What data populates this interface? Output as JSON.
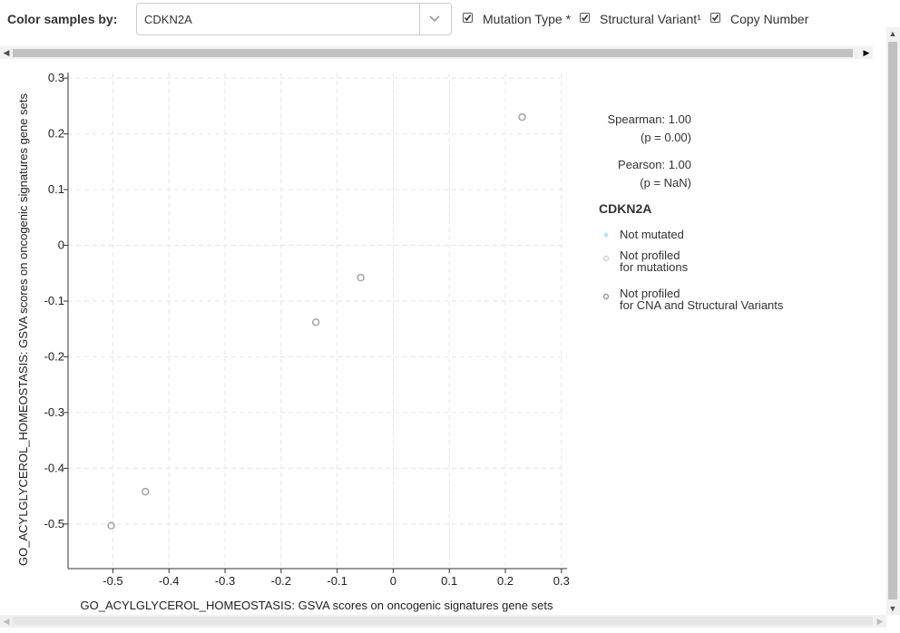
{
  "toolbar": {
    "color_label": "Color samples by:",
    "gene_select_value": "CDKN2A",
    "checkboxes": [
      {
        "label": "Mutation Type *",
        "checked": true
      },
      {
        "label": "Structural Variant¹",
        "checked": true
      },
      {
        "label": "Copy Number",
        "checked": true
      }
    ]
  },
  "chart_data": {
    "type": "scatter",
    "xlabel": "GO_ACYLGLYCEROL_HOMEOSTASIS: GSVA scores on oncogenic signatures gene sets",
    "ylabel": "GO_ACYLGLYCEROL_HOMEOSTASIS: GSVA scores on oncogenic signatures gene sets",
    "xlim": [
      -0.58,
      0.31
    ],
    "ylim": [
      -0.58,
      0.31
    ],
    "x_ticks": [
      -0.5,
      -0.4,
      -0.3,
      -0.2,
      -0.1,
      0,
      0.1,
      0.2,
      0.3
    ],
    "y_ticks": [
      -0.5,
      -0.4,
      -0.3,
      -0.2,
      -0.1,
      0,
      0.1,
      0.2,
      0.3
    ],
    "x_tick_labels": [
      "-0.5",
      "-0.4",
      "-0.3",
      "-0.2",
      "-0.1",
      "0",
      "0.1",
      "0.2",
      "0.3"
    ],
    "y_tick_labels": [
      "-0.5",
      "-0.4",
      "-0.3",
      "-0.2",
      "-0.1",
      "0",
      "0.1",
      "0.2",
      "0.3"
    ],
    "grid": true,
    "points": [
      {
        "x": -0.503,
        "y": -0.503
      },
      {
        "x": -0.442,
        "y": -0.442
      },
      {
        "x": -0.138,
        "y": -0.138
      },
      {
        "x": -0.058,
        "y": -0.058
      },
      {
        "x": 0.23,
        "y": 0.23
      }
    ],
    "point_color": "#a6a6a6"
  },
  "stats": {
    "spearman": "Spearman: 1.00",
    "spearman_p": "(p = 0.00)",
    "pearson": "Pearson: 1.00",
    "pearson_p": "(p = NaN)"
  },
  "legend": {
    "title": "CDKN2A",
    "items": [
      {
        "label": "Not mutated",
        "marker": "dot",
        "color": "#bde4f2"
      },
      {
        "label": "Not profiled\nfor mutations",
        "marker": "ring",
        "color": "#cccccc"
      },
      {
        "label": "Not profiled\nfor CNA and Structural Variants",
        "marker": "ring",
        "color": "#999999"
      }
    ]
  }
}
